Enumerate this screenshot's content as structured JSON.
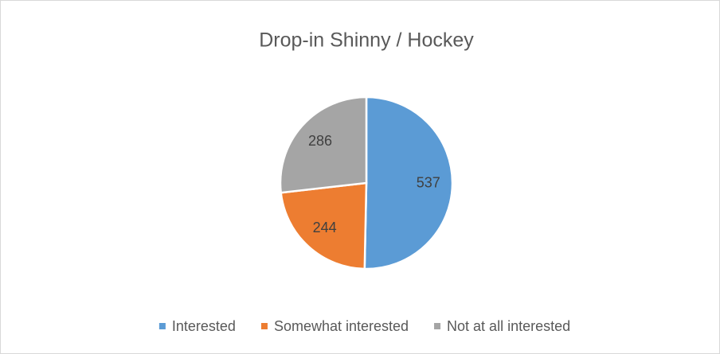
{
  "chart_data": {
    "type": "pie",
    "title": "Drop-in Shinny / Hockey",
    "categories": [
      "Interested",
      "Somewhat interested",
      "Not at all interested"
    ],
    "values": [
      537,
      244,
      286
    ],
    "colors": [
      "#5b9bd5",
      "#ed7d31",
      "#a5a5a5"
    ],
    "legend": "bottom"
  }
}
